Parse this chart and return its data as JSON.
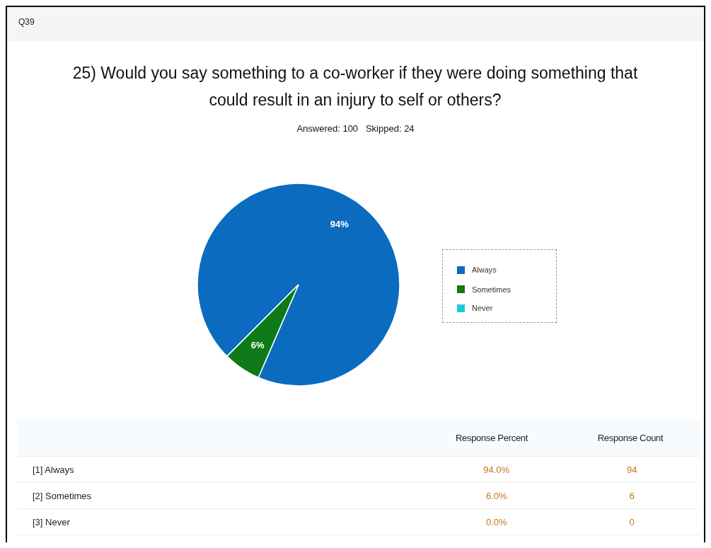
{
  "chart_data": {
    "type": "pie",
    "title": "25) Would you say something to a co-worker if they were doing something that could result in an injury to self or others?",
    "subtitle": "Answered: 100   Skipped: 24",
    "categories": [
      "Always",
      "Sometimes",
      "Never"
    ],
    "values": [
      94,
      6,
      0
    ],
    "colors": [
      "#0b6bbf",
      "#0e7a1a",
      "#1ec8e0"
    ],
    "value_labels": [
      "94%",
      "6%",
      null
    ],
    "legend": "right",
    "annotations": [
      "Q39",
      "Response Percent",
      "Response Count",
      "[1] Always",
      "94.0%",
      "94",
      "[2] Sometimes",
      "6.0%",
      "6",
      "[3] Never",
      "0.0%",
      "0"
    ]
  }
}
